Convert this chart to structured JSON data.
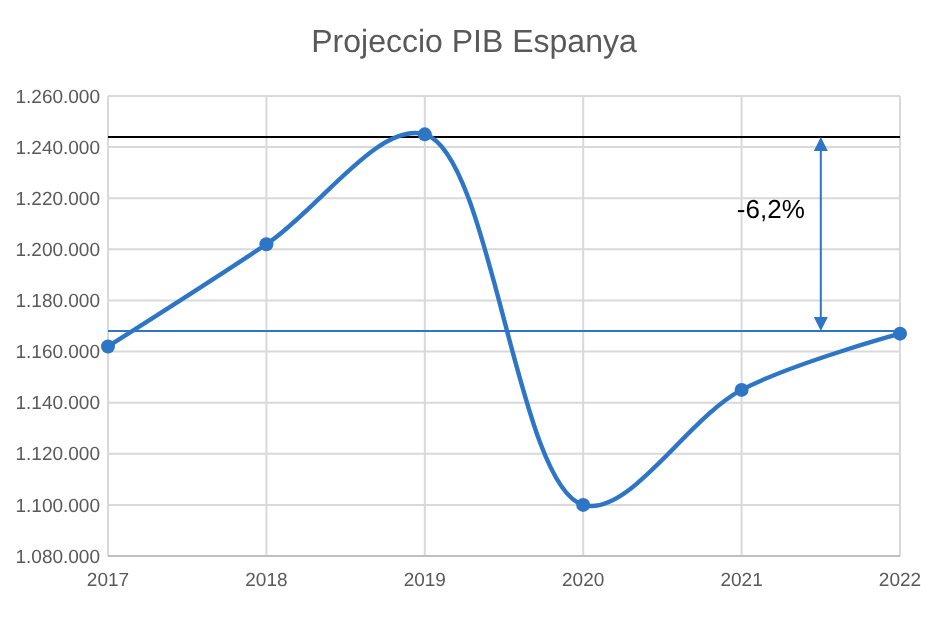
{
  "chart_data": {
    "type": "line",
    "title": "Projeccio  PIB Espanya",
    "x": [
      2017,
      2018,
      2019,
      2020,
      2021,
      2022
    ],
    "series": [
      {
        "color": "#2e75c6",
        "values": [
          1162000,
          1202000,
          1245000,
          1100000,
          1145000,
          1167000
        ]
      }
    ],
    "xlim": [
      2017,
      2022
    ],
    "xticks": [
      2017,
      2018,
      2019,
      2020,
      2021,
      2022
    ],
    "ylim": [
      1080000,
      1260000
    ],
    "yticks": [
      {
        "value": 1080000,
        "label": "1.080.000"
      },
      {
        "value": 1100000,
        "label": "1.100.000"
      },
      {
        "value": 1120000,
        "label": "1.120.000"
      },
      {
        "value": 1140000,
        "label": "1.140.000"
      },
      {
        "value": 1160000,
        "label": "1.160.000"
      },
      {
        "value": 1180000,
        "label": "1.180.000"
      },
      {
        "value": 1200000,
        "label": "1.200.000"
      },
      {
        "value": 1220000,
        "label": "1.220.000"
      },
      {
        "value": 1240000,
        "label": "1.240.000"
      },
      {
        "value": 1260000,
        "label": "1.260.000"
      }
    ],
    "ref_lines": [
      {
        "axis": "y",
        "value": 1244000,
        "color": "#000000"
      },
      {
        "axis": "y",
        "value": 1168000,
        "color": "#2e75c6"
      }
    ],
    "annotations": [
      "-6,2%"
    ],
    "grid": true,
    "marker": "circle"
  }
}
